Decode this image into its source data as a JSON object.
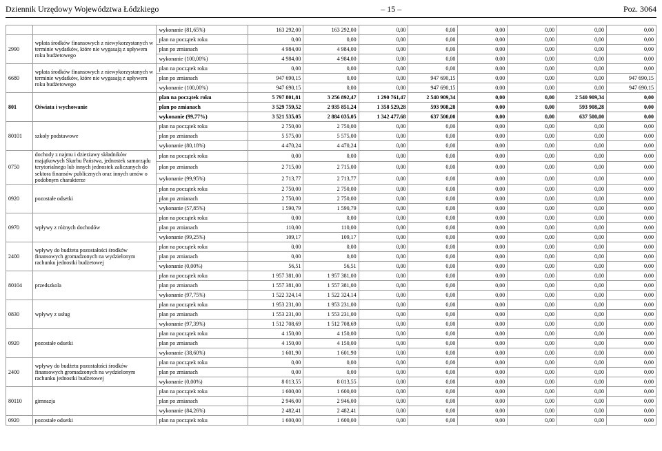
{
  "header": {
    "left": "Dziennik Urzędowy Województwa Łódzkiego",
    "mid": "– 15 –",
    "right": "Poz. 3064"
  },
  "colors": {
    "text": "#000000",
    "border": "#9a9a9a",
    "background": "#ffffff"
  },
  "labels": {
    "plan_start": "plan na początek roku",
    "plan_after": "plan po zmianach",
    "exec_81_65": "wykonanie (81,65%)",
    "exec_100": "wykonanie (100,00%)",
    "exec_99_77": "wykonanie (99,77%)",
    "exec_80_18": "wykonanie (80,18%)",
    "exec_99_95": "wykonanie (99,95%)",
    "exec_57_85": "wykonanie (57,85%)",
    "exec_99_25": "wykonanie (99,25%)",
    "exec_0": "wykonanie (0,00%)",
    "exec_97_75": "wykonanie (97,75%)",
    "exec_97_39": "wykonanie (97,39%)",
    "exec_38_60": "wykonanie (38,60%)",
    "exec_84_26": "wykonanie (84,26%)"
  },
  "desc": {
    "d2990": "wpłata środków finansowych z niewykorzystanych w terminie wydatków, które nie wygasają z upływem roku budżetowego",
    "d6680": "wpłata środków finansowych z niewykorzystanych w terminie wydatków, które nie wygasają z upływem roku budżetowego",
    "d801": "Oświata i wychowanie",
    "d80101": "szkoły podstawowe",
    "d0750": "dochody z najmu i dzierżawy składników majątkowych Skarbu Państwa, jednostek samorządu terytorialnego lub innych jednostek zaliczanych do sektora finansów publicznych oraz innych umów o podobnym charakterze",
    "d0920": "pozostałe odsetki",
    "d0970": "wpływy z różnych dochodów",
    "d2400": "wpływy do budżetu pozostałości środków finansowych gromadzonych na wydzielonym rachunku jednostki budżetowej",
    "d80104": "przedszkola",
    "d0830": "wpływy z usług",
    "d80110": "gimnazja"
  },
  "rows": [
    {
      "bold": false,
      "code": "",
      "desc": "",
      "label_key": "exec_81_65",
      "v": [
        "163 292,00",
        "163 292,00",
        "0,00",
        "0,00",
        "0,00",
        "0,00",
        "0,00",
        "0,00"
      ]
    },
    {
      "bold": false,
      "code": "2990",
      "desc_key": "d2990",
      "rowspan": 3,
      "label_key": "plan_start",
      "v": [
        "0,00",
        "0,00",
        "0,00",
        "0,00",
        "0,00",
        "0,00",
        "0,00",
        "0,00"
      ]
    },
    {
      "bold": false,
      "label_key": "plan_after",
      "v": [
        "4 984,00",
        "4 984,00",
        "0,00",
        "0,00",
        "0,00",
        "0,00",
        "0,00",
        "0,00"
      ]
    },
    {
      "bold": false,
      "label_key": "exec_100",
      "v": [
        "4 984,00",
        "4 984,00",
        "0,00",
        "0,00",
        "0,00",
        "0,00",
        "0,00",
        "0,00"
      ]
    },
    {
      "bold": false,
      "code": "6680",
      "desc_key": "d6680",
      "rowspan": 3,
      "label_key": "plan_start",
      "v": [
        "0,00",
        "0,00",
        "0,00",
        "0,00",
        "0,00",
        "0,00",
        "0,00",
        "0,00"
      ]
    },
    {
      "bold": false,
      "label_key": "plan_after",
      "v": [
        "947 690,15",
        "0,00",
        "0,00",
        "947 690,15",
        "0,00",
        "0,00",
        "0,00",
        "947 690,15"
      ]
    },
    {
      "bold": false,
      "label_key": "exec_100",
      "v": [
        "947 690,15",
        "0,00",
        "0,00",
        "947 690,15",
        "0,00",
        "0,00",
        "0,00",
        "947 690,15"
      ]
    },
    {
      "bold": true,
      "code": "801",
      "desc_key": "d801",
      "rowspan": 3,
      "label_key": "plan_start",
      "v": [
        "5 797 801,81",
        "3 256 892,47",
        "1 290 761,47",
        "2 540 909,34",
        "0,00",
        "0,00",
        "2 540 909,34",
        "0,00"
      ]
    },
    {
      "bold": true,
      "label_key": "plan_after",
      "v": [
        "3 529 759,52",
        "2 935 851,24",
        "1 358 529,28",
        "593 908,28",
        "0,00",
        "0,00",
        "593 908,28",
        "0,00"
      ]
    },
    {
      "bold": true,
      "label_key": "exec_99_77",
      "v": [
        "3 521 535,05",
        "2 884 035,05",
        "1 342 477,68",
        "637 500,00",
        "0,00",
        "0,00",
        "637 500,00",
        "0,00"
      ]
    },
    {
      "bold": false,
      "code": "80101",
      "desc_key": "d80101",
      "rowspan": 3,
      "label_key": "plan_start",
      "v": [
        "2 750,00",
        "2 750,00",
        "0,00",
        "0,00",
        "0,00",
        "0,00",
        "0,00",
        "0,00"
      ]
    },
    {
      "bold": false,
      "label_key": "plan_after",
      "v": [
        "5 575,00",
        "5 575,00",
        "0,00",
        "0,00",
        "0,00",
        "0,00",
        "0,00",
        "0,00"
      ]
    },
    {
      "bold": false,
      "label_key": "exec_80_18",
      "v": [
        "4 470,24",
        "4 470,24",
        "0,00",
        "0,00",
        "0,00",
        "0,00",
        "0,00",
        "0,00"
      ]
    },
    {
      "bold": false,
      "code": "0750",
      "desc_key": "d0750",
      "rowspan": 3,
      "label_key": "plan_start",
      "v": [
        "0,00",
        "0,00",
        "0,00",
        "0,00",
        "0,00",
        "0,00",
        "0,00",
        "0,00"
      ]
    },
    {
      "bold": false,
      "label_key": "plan_after",
      "v": [
        "2 715,00",
        "2 715,00",
        "0,00",
        "0,00",
        "0,00",
        "0,00",
        "0,00",
        "0,00"
      ]
    },
    {
      "bold": false,
      "label_key": "exec_99_95",
      "v": [
        "2 713,77",
        "2 713,77",
        "0,00",
        "0,00",
        "0,00",
        "0,00",
        "0,00",
        "0,00"
      ]
    },
    {
      "bold": false,
      "code": "0920",
      "desc_key": "d0920",
      "rowspan": 3,
      "label_key": "plan_start",
      "v": [
        "2 750,00",
        "2 750,00",
        "0,00",
        "0,00",
        "0,00",
        "0,00",
        "0,00",
        "0,00"
      ]
    },
    {
      "bold": false,
      "label_key": "plan_after",
      "v": [
        "2 750,00",
        "2 750,00",
        "0,00",
        "0,00",
        "0,00",
        "0,00",
        "0,00",
        "0,00"
      ]
    },
    {
      "bold": false,
      "label_key": "exec_57_85",
      "v": [
        "1 590,79",
        "1 590,79",
        "0,00",
        "0,00",
        "0,00",
        "0,00",
        "0,00",
        "0,00"
      ]
    },
    {
      "bold": false,
      "code": "0970",
      "desc_key": "d0970",
      "rowspan": 3,
      "label_key": "plan_start",
      "v": [
        "0,00",
        "0,00",
        "0,00",
        "0,00",
        "0,00",
        "0,00",
        "0,00",
        "0,00"
      ]
    },
    {
      "bold": false,
      "label_key": "plan_after",
      "v": [
        "110,00",
        "110,00",
        "0,00",
        "0,00",
        "0,00",
        "0,00",
        "0,00",
        "0,00"
      ]
    },
    {
      "bold": false,
      "label_key": "exec_99_25",
      "v": [
        "109,17",
        "109,17",
        "0,00",
        "0,00",
        "0,00",
        "0,00",
        "0,00",
        "0,00"
      ]
    },
    {
      "bold": false,
      "code": "2400",
      "desc_key": "d2400",
      "rowspan": 3,
      "label_key": "plan_start",
      "v": [
        "0,00",
        "0,00",
        "0,00",
        "0,00",
        "0,00",
        "0,00",
        "0,00",
        "0,00"
      ]
    },
    {
      "bold": false,
      "label_key": "plan_after",
      "v": [
        "0,00",
        "0,00",
        "0,00",
        "0,00",
        "0,00",
        "0,00",
        "0,00",
        "0,00"
      ]
    },
    {
      "bold": false,
      "label_key": "exec_0",
      "v": [
        "56,51",
        "56,51",
        "0,00",
        "0,00",
        "0,00",
        "0,00",
        "0,00",
        "0,00"
      ]
    },
    {
      "bold": false,
      "code": "80104",
      "desc_key": "d80104",
      "rowspan": 3,
      "label_key": "plan_start",
      "v": [
        "1 957 381,00",
        "1 957 381,00",
        "0,00",
        "0,00",
        "0,00",
        "0,00",
        "0,00",
        "0,00"
      ]
    },
    {
      "bold": false,
      "label_key": "plan_after",
      "v": [
        "1 557 381,00",
        "1 557 381,00",
        "0,00",
        "0,00",
        "0,00",
        "0,00",
        "0,00",
        "0,00"
      ]
    },
    {
      "bold": false,
      "label_key": "exec_97_75",
      "v": [
        "1 522 324,14",
        "1 522 324,14",
        "0,00",
        "0,00",
        "0,00",
        "0,00",
        "0,00",
        "0,00"
      ]
    },
    {
      "bold": false,
      "code": "0830",
      "desc_key": "d0830",
      "rowspan": 3,
      "label_key": "plan_start",
      "v": [
        "1 953 231,00",
        "1 953 231,00",
        "0,00",
        "0,00",
        "0,00",
        "0,00",
        "0,00",
        "0,00"
      ]
    },
    {
      "bold": false,
      "label_key": "plan_after",
      "v": [
        "1 553 231,00",
        "1 553 231,00",
        "0,00",
        "0,00",
        "0,00",
        "0,00",
        "0,00",
        "0,00"
      ]
    },
    {
      "bold": false,
      "label_key": "exec_97_39",
      "v": [
        "1 512 708,69",
        "1 512 708,69",
        "0,00",
        "0,00",
        "0,00",
        "0,00",
        "0,00",
        "0,00"
      ]
    },
    {
      "bold": false,
      "code": "0920",
      "desc_key": "d0920",
      "rowspan": 3,
      "label_key": "plan_start",
      "v": [
        "4 150,00",
        "4 150,00",
        "0,00",
        "0,00",
        "0,00",
        "0,00",
        "0,00",
        "0,00"
      ]
    },
    {
      "bold": false,
      "label_key": "plan_after",
      "v": [
        "4 150,00",
        "4 150,00",
        "0,00",
        "0,00",
        "0,00",
        "0,00",
        "0,00",
        "0,00"
      ]
    },
    {
      "bold": false,
      "label_key": "exec_38_60",
      "v": [
        "1 601,90",
        "1 601,90",
        "0,00",
        "0,00",
        "0,00",
        "0,00",
        "0,00",
        "0,00"
      ]
    },
    {
      "bold": false,
      "code": "2400",
      "desc_key": "d2400",
      "rowspan": 3,
      "label_key": "plan_start",
      "v": [
        "0,00",
        "0,00",
        "0,00",
        "0,00",
        "0,00",
        "0,00",
        "0,00",
        "0,00"
      ]
    },
    {
      "bold": false,
      "label_key": "plan_after",
      "v": [
        "0,00",
        "0,00",
        "0,00",
        "0,00",
        "0,00",
        "0,00",
        "0,00",
        "0,00"
      ]
    },
    {
      "bold": false,
      "label_key": "exec_0",
      "v": [
        "8 013,55",
        "8 013,55",
        "0,00",
        "0,00",
        "0,00",
        "0,00",
        "0,00",
        "0,00"
      ]
    },
    {
      "bold": false,
      "code": "80110",
      "desc_key": "d80110",
      "rowspan": 3,
      "label_key": "plan_start",
      "v": [
        "1 600,00",
        "1 600,00",
        "0,00",
        "0,00",
        "0,00",
        "0,00",
        "0,00",
        "0,00"
      ]
    },
    {
      "bold": false,
      "label_key": "plan_after",
      "v": [
        "2 946,00",
        "2 946,00",
        "0,00",
        "0,00",
        "0,00",
        "0,00",
        "0,00",
        "0,00"
      ]
    },
    {
      "bold": false,
      "label_key": "exec_84_26",
      "v": [
        "2 482,41",
        "2 482,41",
        "0,00",
        "0,00",
        "0,00",
        "0,00",
        "0,00",
        "0,00"
      ]
    },
    {
      "bold": false,
      "code": "0920",
      "desc_key": "d0920",
      "rowspan": 1,
      "label_key": "plan_start",
      "v": [
        "1 600,00",
        "1 600,00",
        "0,00",
        "0,00",
        "0,00",
        "0,00",
        "0,00",
        "0,00"
      ]
    }
  ]
}
